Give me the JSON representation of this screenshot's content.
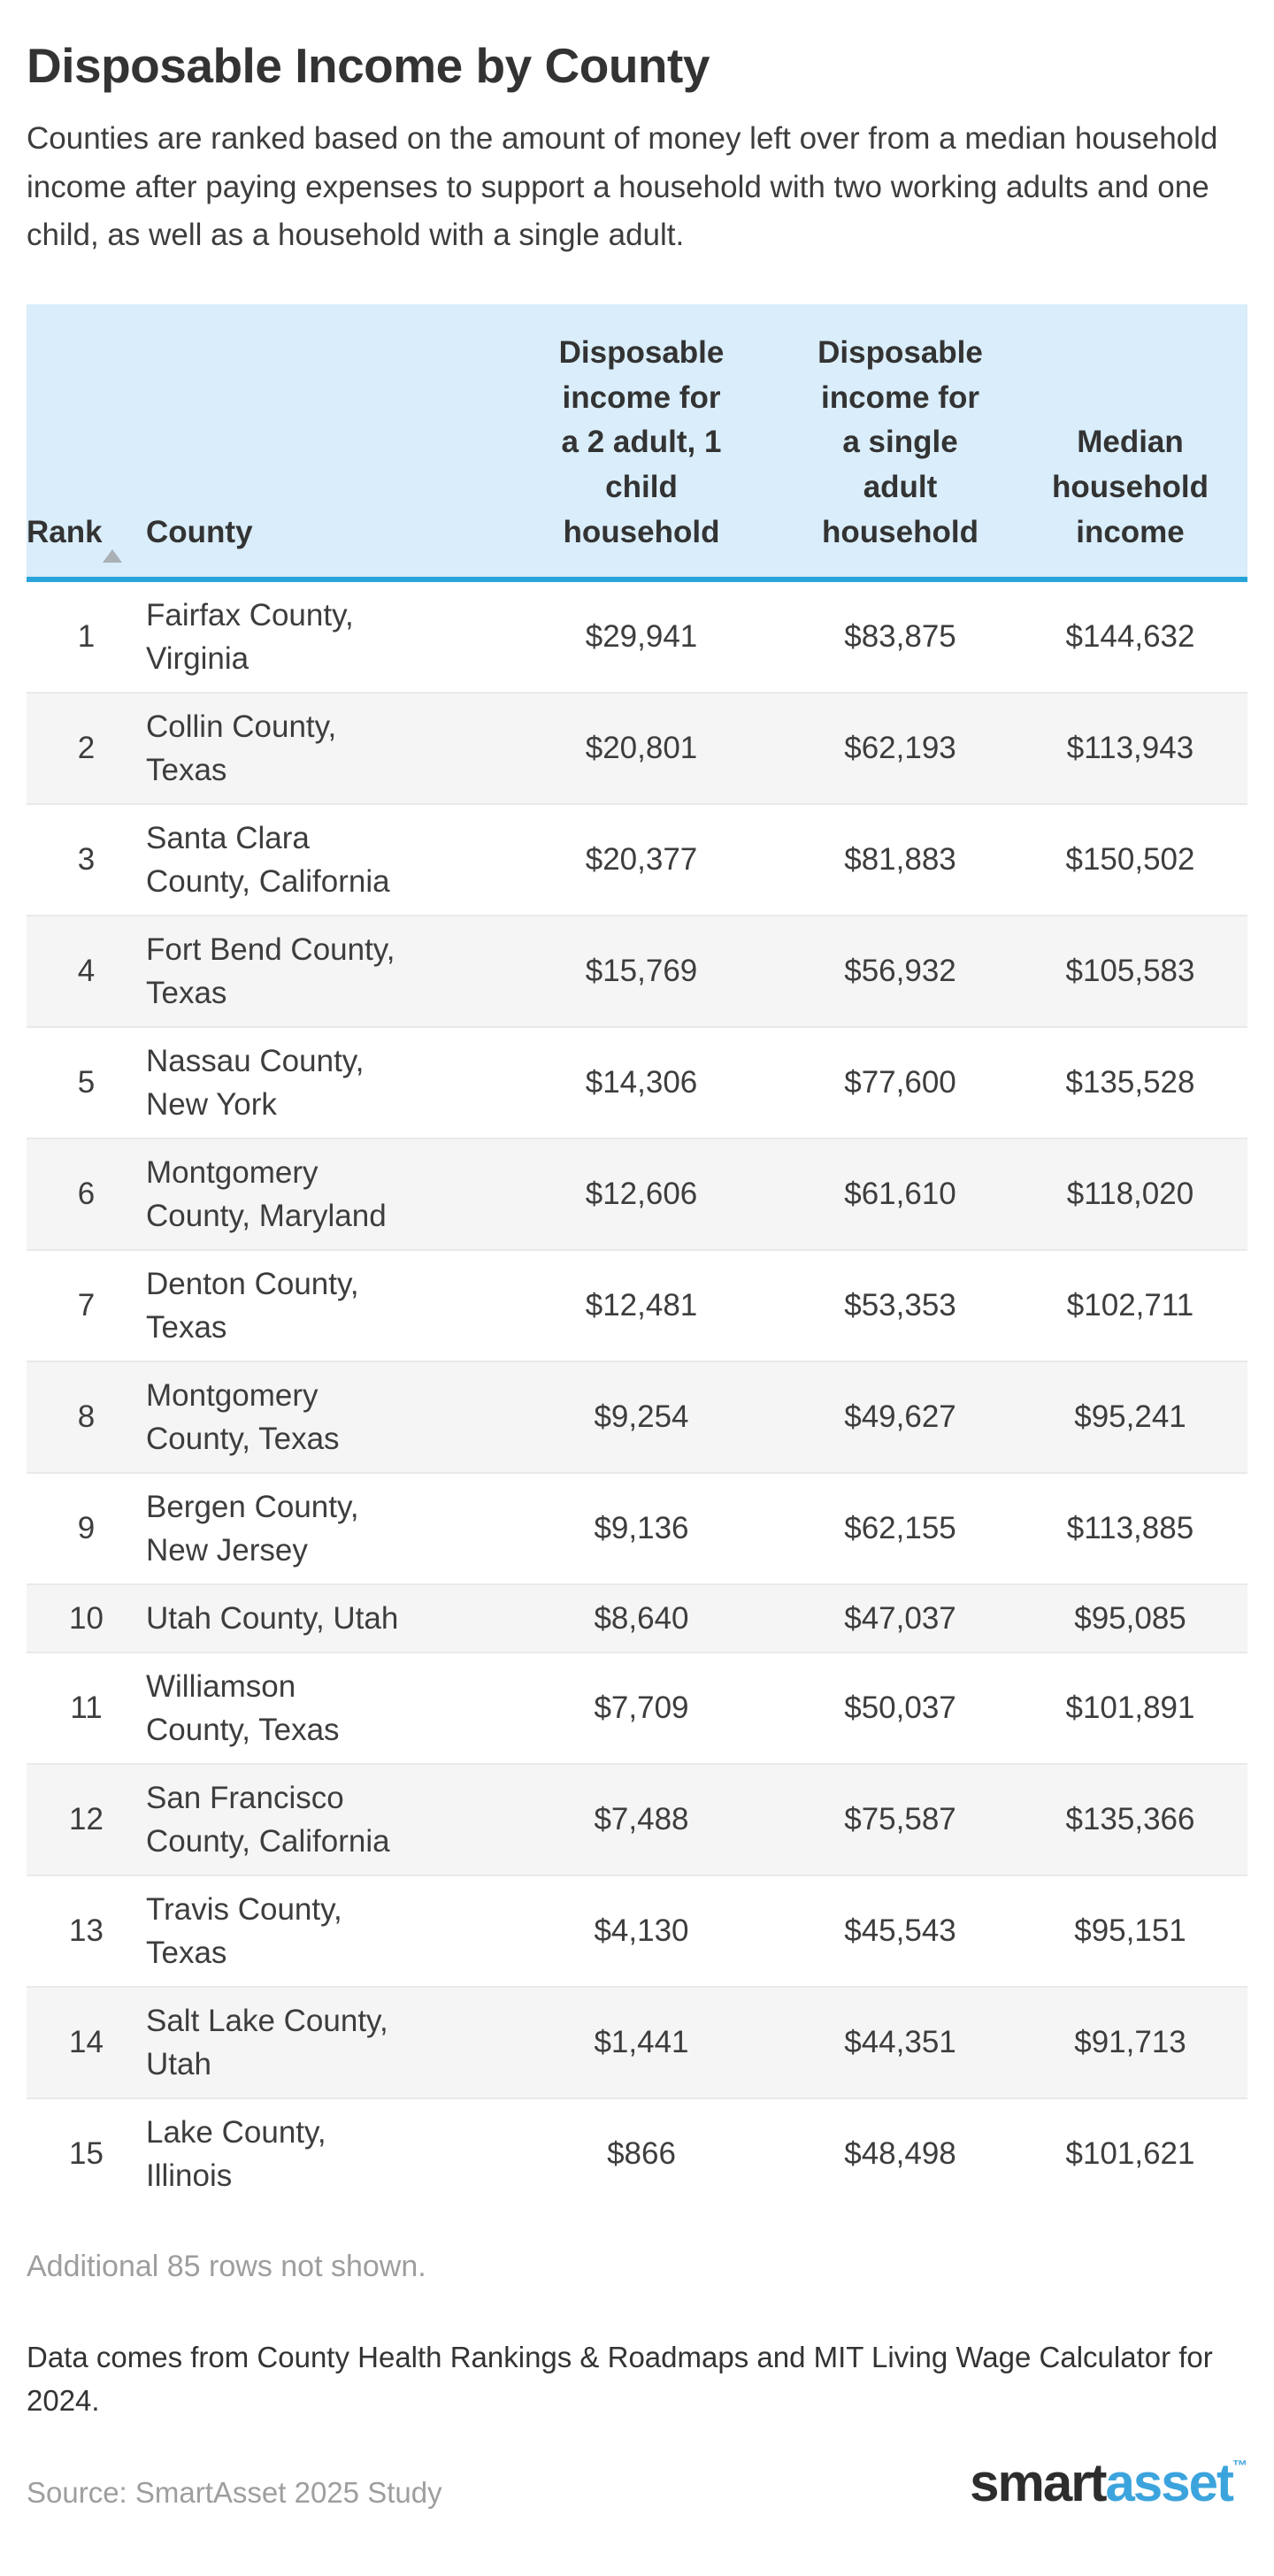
{
  "page": {
    "title": "Disposable Income by County",
    "description": "Counties are ranked based on the amount of money left over from a median household income after paying expenses to support a household with two working adults and one child, as well as a household with a single adult.",
    "additional_rows_note": "Additional 85 rows not shown.",
    "data_note": "Data comes from County Health Rankings & Roadmaps and MIT Living Wage Calculator for 2024.",
    "source": "Source: SmartAsset 2025 Study",
    "logo": {
      "part1": "smart",
      "part2": "asset",
      "tm": "™"
    }
  },
  "colors": {
    "accent_blue": "#29a4d9",
    "header_bg": "#d9edfa",
    "alt_row_bg": "#f5f5f5",
    "row_divider": "#e9e9e9",
    "logo_blue": "#3ca4dd",
    "muted_gray": "#9e9e9e",
    "text_dark": "#333333"
  },
  "table": {
    "sort": {
      "column": "Rank",
      "direction": "ascending"
    },
    "columns": [
      "Rank",
      "County",
      "Disposable\nincome for\na 2 adult, 1\nchild\nhousehold",
      "Disposable\nincome for\na single\nadult\nhousehold",
      "Median\nhousehold\nincome"
    ],
    "rows": [
      {
        "rank": "1",
        "county": "Fairfax County,\nVirginia",
        "disposable_2adult_1child": "$29,941",
        "disposable_single_adult": "$83,875",
        "median_household_income": "$144,632"
      },
      {
        "rank": "2",
        "county": "Collin County,\nTexas",
        "disposable_2adult_1child": "$20,801",
        "disposable_single_adult": "$62,193",
        "median_household_income": "$113,943"
      },
      {
        "rank": "3",
        "county": "Santa Clara\nCounty, California",
        "disposable_2adult_1child": "$20,377",
        "disposable_single_adult": "$81,883",
        "median_household_income": "$150,502"
      },
      {
        "rank": "4",
        "county": "Fort Bend County,\nTexas",
        "disposable_2adult_1child": "$15,769",
        "disposable_single_adult": "$56,932",
        "median_household_income": "$105,583"
      },
      {
        "rank": "5",
        "county": "Nassau County,\nNew York",
        "disposable_2adult_1child": "$14,306",
        "disposable_single_adult": "$77,600",
        "median_household_income": "$135,528"
      },
      {
        "rank": "6",
        "county": "Montgomery\nCounty, Maryland",
        "disposable_2adult_1child": "$12,606",
        "disposable_single_adult": "$61,610",
        "median_household_income": "$118,020"
      },
      {
        "rank": "7",
        "county": "Denton County,\nTexas",
        "disposable_2adult_1child": "$12,481",
        "disposable_single_adult": "$53,353",
        "median_household_income": "$102,711"
      },
      {
        "rank": "8",
        "county": "Montgomery\nCounty, Texas",
        "disposable_2adult_1child": "$9,254",
        "disposable_single_adult": "$49,627",
        "median_household_income": "$95,241"
      },
      {
        "rank": "9",
        "county": "Bergen County,\nNew Jersey",
        "disposable_2adult_1child": "$9,136",
        "disposable_single_adult": "$62,155",
        "median_household_income": "$113,885"
      },
      {
        "rank": "10",
        "county": "Utah County, Utah",
        "disposable_2adult_1child": "$8,640",
        "disposable_single_adult": "$47,037",
        "median_household_income": "$95,085"
      },
      {
        "rank": "11",
        "county": "Williamson\nCounty, Texas",
        "disposable_2adult_1child": "$7,709",
        "disposable_single_adult": "$50,037",
        "median_household_income": "$101,891"
      },
      {
        "rank": "12",
        "county": "San Francisco\nCounty, California",
        "disposable_2adult_1child": "$7,488",
        "disposable_single_adult": "$75,587",
        "median_household_income": "$135,366"
      },
      {
        "rank": "13",
        "county": "Travis County,\nTexas",
        "disposable_2adult_1child": "$4,130",
        "disposable_single_adult": "$45,543",
        "median_household_income": "$95,151"
      },
      {
        "rank": "14",
        "county": "Salt Lake County,\nUtah",
        "disposable_2adult_1child": "$1,441",
        "disposable_single_adult": "$44,351",
        "median_household_income": "$91,713"
      },
      {
        "rank": "15",
        "county": "Lake County,\nIllinois",
        "disposable_2adult_1child": "$866",
        "disposable_single_adult": "$48,498",
        "median_household_income": "$101,621"
      }
    ]
  },
  "chart_data": {
    "type": "table",
    "title": "Disposable Income by County",
    "columns": [
      "Rank",
      "County",
      "Disposable income for a 2 adult, 1 child household",
      "Disposable income for a single adult household",
      "Median household income"
    ],
    "rows": [
      [
        1,
        "Fairfax County, Virginia",
        29941,
        83875,
        144632
      ],
      [
        2,
        "Collin County, Texas",
        20801,
        62193,
        113943
      ],
      [
        3,
        "Santa Clara County, California",
        20377,
        81883,
        150502
      ],
      [
        4,
        "Fort Bend County, Texas",
        15769,
        56932,
        105583
      ],
      [
        5,
        "Nassau County, New York",
        14306,
        77600,
        135528
      ],
      [
        6,
        "Montgomery County, Maryland",
        12606,
        61610,
        118020
      ],
      [
        7,
        "Denton County, Texas",
        12481,
        53353,
        102711
      ],
      [
        8,
        "Montgomery County, Texas",
        9254,
        49627,
        95241
      ],
      [
        9,
        "Bergen County, New Jersey",
        9136,
        62155,
        113885
      ],
      [
        10,
        "Utah County, Utah",
        8640,
        47037,
        95085
      ],
      [
        11,
        "Williamson County, Texas",
        7709,
        50037,
        101891
      ],
      [
        12,
        "San Francisco County, California",
        7488,
        75587,
        135366
      ],
      [
        13,
        "Travis County, Texas",
        4130,
        45543,
        95151
      ],
      [
        14,
        "Salt Lake County, Utah",
        1441,
        44351,
        91713
      ],
      [
        15,
        "Lake County, Illinois",
        866,
        48498,
        101621
      ]
    ],
    "sort": {
      "column": "Rank",
      "direction": "ascending"
    },
    "notes": [
      "Additional 85 rows not shown.",
      "Data comes from County Health Rankings & Roadmaps and MIT Living Wage Calculator for 2024.",
      "Source: SmartAsset 2025 Study"
    ]
  }
}
